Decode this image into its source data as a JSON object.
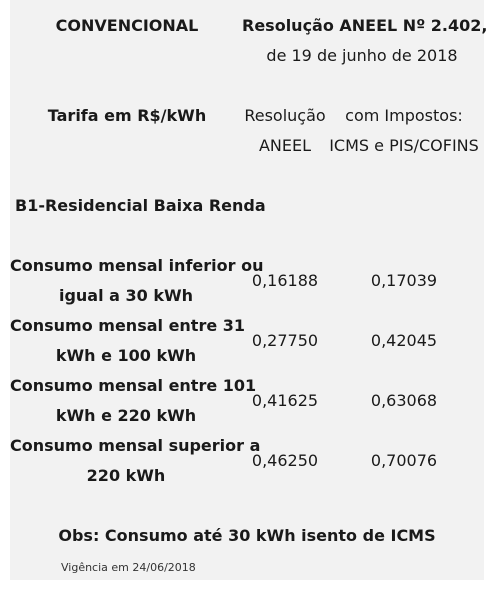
{
  "header": {
    "title_left": "CONVENCIONAL",
    "resolution_line1": "Resolução ANEEL Nº 2.402,",
    "resolution_line2": "de 19 de junho de 2018"
  },
  "columns": {
    "tariff_label": "Tarifa em R$/kWh",
    "aneel_line1": "Resolução",
    "aneel_line2": "ANEEL",
    "taxes_line1": "com Impostos:",
    "taxes_line2": "ICMS e PIS/COFINS"
  },
  "section_title": "B1-Residencial Baixa Renda",
  "rows": [
    {
      "label_line1": "Consumo mensal inferior ou",
      "label_line2": "igual a 30 kWh",
      "aneel": "0,16188",
      "taxes": "0,17039"
    },
    {
      "label_line1": "Consumo mensal entre 31",
      "label_line2": "kWh e 100 kWh",
      "aneel": "0,27750",
      "taxes": "0,42045"
    },
    {
      "label_line1": "Consumo mensal entre 101",
      "label_line2": "kWh e 220 kWh",
      "aneel": "0,41625",
      "taxes": "0,63068"
    },
    {
      "label_line1": "Consumo mensal superior a",
      "label_line2": "220 kWh",
      "aneel": "0,46250",
      "taxes": "0,70076"
    }
  ],
  "observation": "Obs: Consumo até 30 kWh isento de ICMS",
  "validity": "Vigência em 24/06/2018"
}
